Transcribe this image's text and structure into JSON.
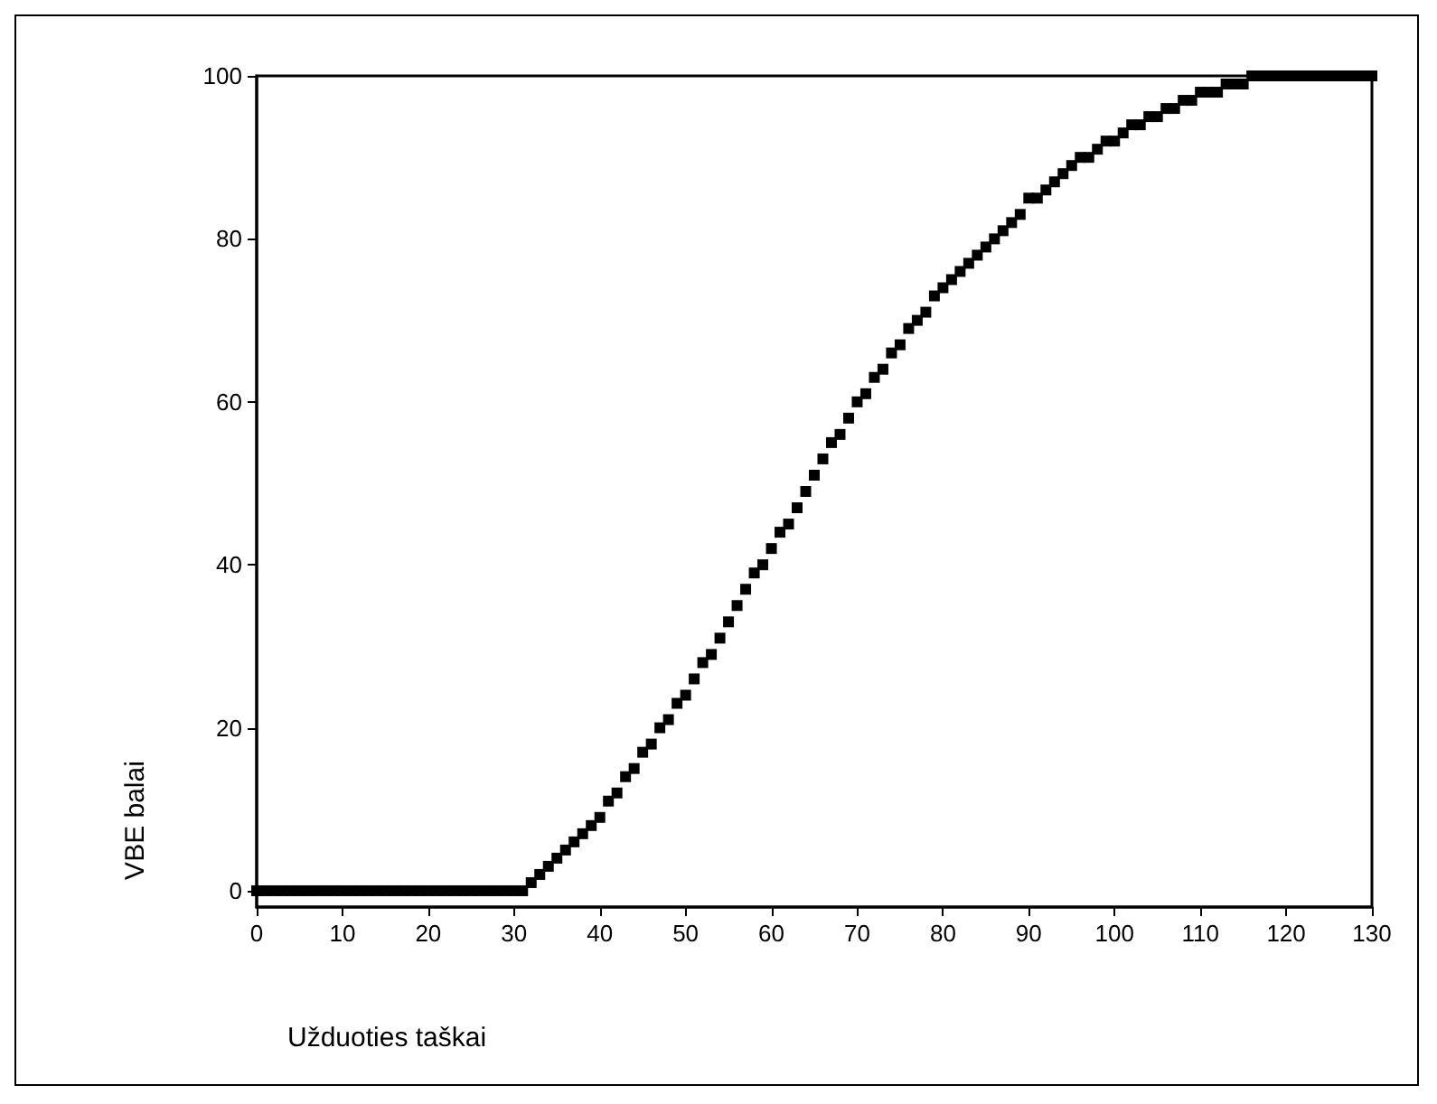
{
  "chart_data": {
    "type": "scatter",
    "xlabel": "Užduoties taškai",
    "ylabel": "VBE balai",
    "marker": "square",
    "grid": false,
    "xlim": [
      0,
      130
    ],
    "xticks": [
      0,
      10,
      20,
      30,
      40,
      50,
      60,
      70,
      80,
      90,
      100,
      110,
      120,
      130
    ],
    "ylim": [
      -2,
      100
    ],
    "yticks": [
      0,
      20,
      40,
      60,
      80,
      100
    ],
    "series": [
      {
        "color": "#000000",
        "x": [
          0,
          1,
          2,
          3,
          4,
          5,
          6,
          7,
          8,
          9,
          10,
          11,
          12,
          13,
          14,
          15,
          16,
          17,
          18,
          19,
          20,
          21,
          22,
          23,
          24,
          25,
          26,
          27,
          28,
          29,
          30,
          31,
          32,
          33,
          34,
          35,
          36,
          37,
          38,
          39,
          40,
          41,
          42,
          43,
          44,
          45,
          46,
          47,
          48,
          49,
          50,
          51,
          52,
          53,
          54,
          55,
          56,
          57,
          58,
          59,
          60,
          61,
          62,
          63,
          64,
          65,
          66,
          67,
          68,
          69,
          70,
          71,
          72,
          73,
          74,
          75,
          76,
          77,
          78,
          79,
          80,
          81,
          82,
          83,
          84,
          85,
          86,
          87,
          88,
          89,
          90,
          91,
          92,
          93,
          94,
          95,
          96,
          97,
          98,
          99,
          100,
          101,
          102,
          103,
          104,
          105,
          106,
          107,
          108,
          109,
          110,
          111,
          112,
          113,
          114,
          115,
          116,
          117,
          118,
          119,
          120,
          121,
          122,
          123,
          124,
          125,
          126,
          127,
          128,
          129,
          130
        ],
        "values": [
          0,
          0,
          0,
          0,
          0,
          0,
          0,
          0,
          0,
          0,
          0,
          0,
          0,
          0,
          0,
          0,
          0,
          0,
          0,
          0,
          0,
          0,
          0,
          0,
          0,
          0,
          0,
          0,
          0,
          0,
          0,
          0,
          1,
          2,
          3,
          4,
          5,
          6,
          7,
          8,
          9,
          11,
          12,
          14,
          15,
          17,
          18,
          20,
          21,
          23,
          24,
          26,
          28,
          29,
          31,
          33,
          35,
          37,
          39,
          40,
          42,
          44,
          45,
          47,
          49,
          51,
          53,
          55,
          56,
          58,
          60,
          61,
          63,
          64,
          66,
          67,
          69,
          70,
          71,
          73,
          74,
          75,
          76,
          77,
          78,
          79,
          80,
          81,
          82,
          83,
          85,
          85,
          86,
          87,
          88,
          89,
          90,
          90,
          91,
          92,
          92,
          93,
          94,
          94,
          95,
          95,
          96,
          96,
          97,
          97,
          98,
          98,
          98,
          99,
          99,
          99,
          100,
          100,
          100,
          100,
          100,
          100,
          100,
          100,
          100,
          100,
          100,
          100,
          100,
          100,
          100
        ]
      }
    ]
  }
}
